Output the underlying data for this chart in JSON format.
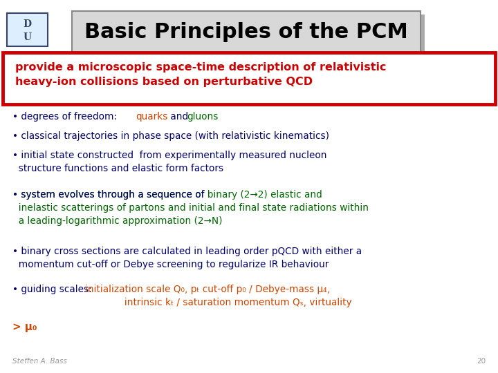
{
  "title": "Basic Principles of the PCM",
  "title_fontsize": 22,
  "slide_bg": "#ffffff",
  "red_box_text_line1": "provide a microscopic space-time description of relativistic",
  "red_box_text_line2": "heavy-ion collisions based on perturbative QCD",
  "red_box_color": "#cc0000",
  "red_text_color": "#cc0000",
  "bullet_color": "#000066",
  "orange_color": "#cc4400",
  "green_color": "#006600",
  "footer_author": "Steffen A. Bass",
  "footer_page": "20"
}
